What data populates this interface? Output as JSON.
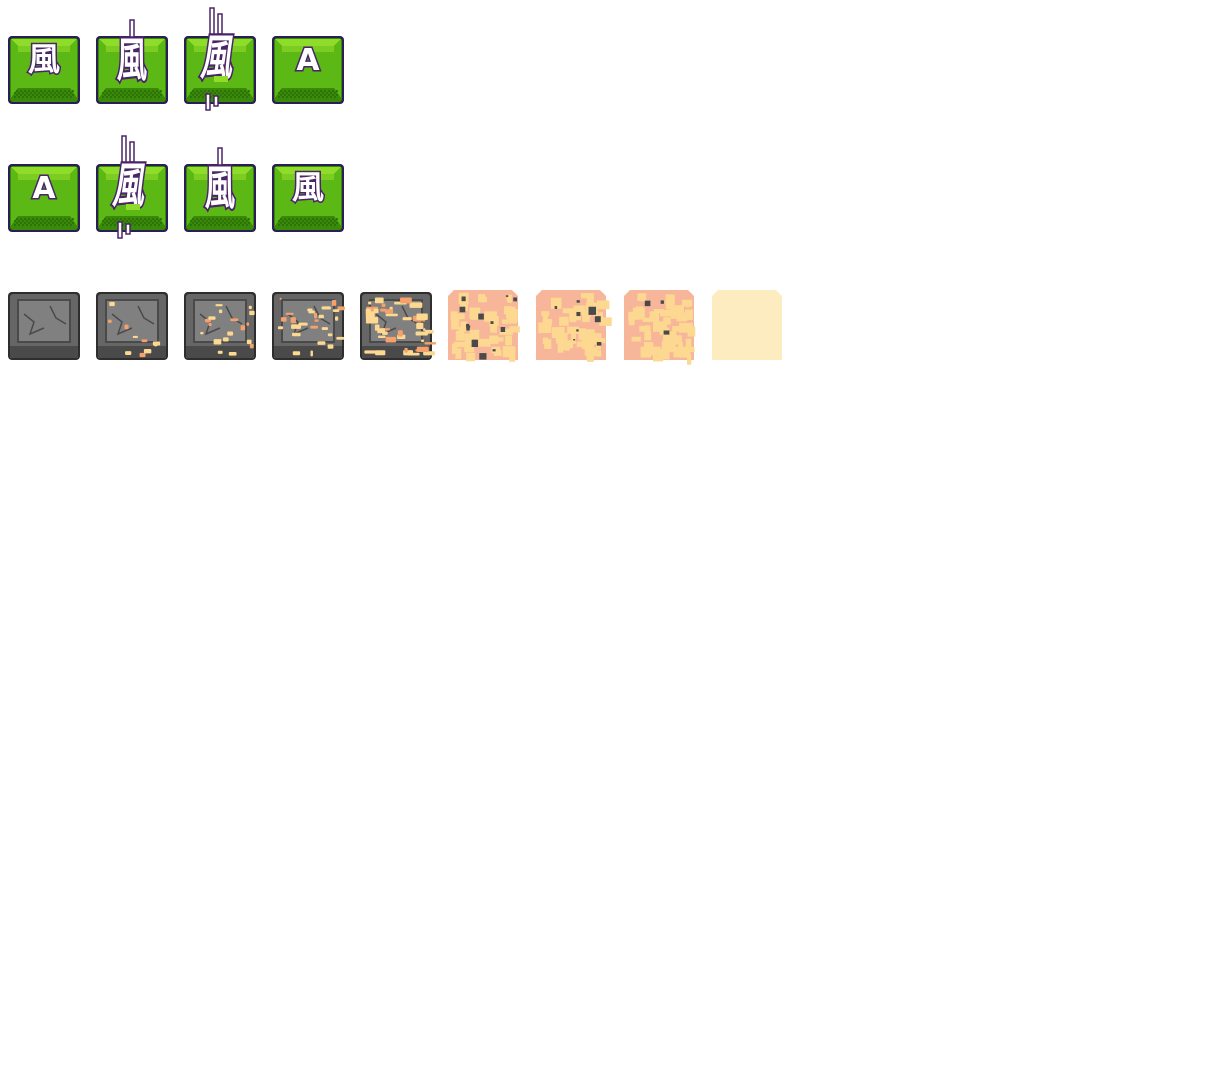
{
  "sprite_sheet": {
    "green_keys_row_1": [
      {
        "frame": 1,
        "glyph": "風",
        "style": "calm"
      },
      {
        "frame": 2,
        "glyph": "風",
        "style": "stretched"
      },
      {
        "frame": 3,
        "glyph": "風",
        "style": "glitched"
      },
      {
        "frame": 4,
        "glyph": "A",
        "style": "calm"
      }
    ],
    "green_keys_row_2": [
      {
        "frame": 1,
        "glyph": "A",
        "style": "calm"
      },
      {
        "frame": 2,
        "glyph": "風",
        "style": "glitched"
      },
      {
        "frame": 3,
        "glyph": "風",
        "style": "stretched"
      },
      {
        "frame": 4,
        "glyph": "風",
        "style": "calm"
      }
    ],
    "stone_tiles": [
      {
        "frame": 1,
        "lava_level": 0.0
      },
      {
        "frame": 2,
        "lava_level": 0.12
      },
      {
        "frame": 3,
        "lava_level": 0.22
      },
      {
        "frame": 4,
        "lava_level": 0.32
      },
      {
        "frame": 5,
        "lava_level": 0.5
      },
      {
        "frame": 6,
        "lava_level": 0.68
      },
      {
        "frame": 7,
        "lava_level": 0.8
      },
      {
        "frame": 8,
        "lava_level": 0.92
      },
      {
        "frame": 9,
        "lava_level": 1.0
      }
    ],
    "colors": {
      "key_green_light": "#8fdc2a",
      "key_green_mid": "#5cb815",
      "key_green_dark": "#3a8a0a",
      "key_outline": "#2a1f52",
      "glyph_fill": "#ffffff",
      "glyph_outline": "#4a2468",
      "stone_dark": "#4a4a4a",
      "stone_mid": "#666666",
      "stone_light": "#808080",
      "lava_orange": "#f5a16b",
      "lava_pale": "#fdd891",
      "lava_salmon": "#f7b59a",
      "ash_cream": "#fdecc0"
    }
  }
}
